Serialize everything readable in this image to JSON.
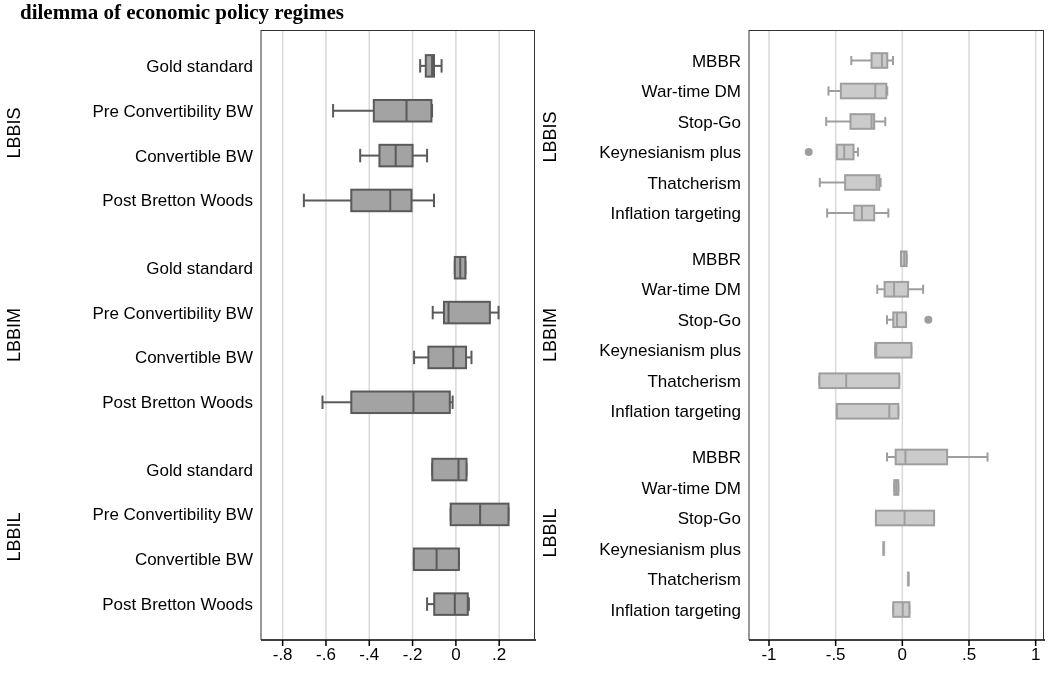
{
  "chart_data": [
    {
      "type": "box",
      "orientation": "horizontal",
      "title": "dilemma of economic policy regimes",
      "color": "#a3a3a3",
      "grid": "x",
      "categories": [
        "Gold standard",
        "Pre Convertibility BW",
        "Convertible BW",
        "Post Bretton Woods",
        null,
        "Gold standard",
        "Pre Convertibility BW",
        "Convertible BW",
        "Post Bretton Woods",
        null,
        "Gold standard",
        "Pre Convertibility BW",
        "Convertible BW",
        "Post Bretton Woods"
      ],
      "annotations": [
        "LBBIS",
        "LBBIM",
        "LBBIL"
      ],
      "xlim": [
        -0.9,
        0.37
      ],
      "xticks": [
        {
          "value": -0.8,
          "label": "-.8"
        },
        {
          "value": -0.6,
          "label": "-.6"
        },
        {
          "value": -0.4,
          "label": "-.4"
        },
        {
          "value": -0.2,
          "label": "-.2"
        },
        0,
        {
          "value": 0.2,
          "label": ".2"
        }
      ],
      "boxes": [
        {
          "low": -0.165,
          "q1": -0.139,
          "median": -0.11,
          "q3": -0.101,
          "high": -0.066
        },
        {
          "low": -0.567,
          "q1": -0.379,
          "median": -0.228,
          "q3": -0.113,
          "high": -0.11
        },
        {
          "low": -0.442,
          "q1": -0.353,
          "median": -0.278,
          "q3": -0.2,
          "high": -0.133
        },
        {
          "low": -0.702,
          "q1": -0.483,
          "median": -0.303,
          "q3": -0.205,
          "high": -0.101
        },
        null,
        {
          "low": -0.005,
          "q1": -0.005,
          "median": 0.02,
          "q3": 0.044,
          "high": 0.044
        },
        {
          "low": -0.107,
          "q1": -0.055,
          "median": -0.034,
          "q3": 0.157,
          "high": 0.197
        },
        {
          "low": -0.193,
          "q1": -0.127,
          "median": -0.012,
          "q3": 0.047,
          "high": 0.072
        },
        {
          "low": -0.616,
          "q1": -0.483,
          "median": -0.196,
          "q3": -0.028,
          "high": -0.015
        },
        null,
        {
          "low": -0.109,
          "q1": -0.109,
          "median": 0.012,
          "q3": 0.049,
          "high": 0.049
        },
        {
          "low": -0.024,
          "q1": -0.024,
          "median": 0.112,
          "q3": 0.243,
          "high": 0.243
        },
        {
          "low": -0.194,
          "q1": -0.194,
          "median": -0.089,
          "q3": 0.014,
          "high": 0.014
        },
        {
          "low": -0.133,
          "q1": -0.1,
          "median": -0.005,
          "q3": 0.055,
          "high": 0.06
        }
      ]
    },
    {
      "type": "box",
      "orientation": "horizontal",
      "color": "#cbcbcb",
      "grid": "x",
      "categories": [
        "MBBR",
        "War-time DM",
        "Stop-Go",
        "Keynesianism plus",
        "Thatcherism",
        "Inflation targeting",
        null,
        "MBBR",
        "War-time DM",
        "Stop-Go",
        "Keynesianism plus",
        "Thatcherism",
        "Inflation targeting",
        null,
        "MBBR",
        "War-time DM",
        "Stop-Go",
        "Keynesianism plus",
        "Thatcherism",
        "Inflation targeting"
      ],
      "annotations": [
        "LBBIS",
        "LBBIM",
        "LBBIL"
      ],
      "xlim": [
        -1.15,
        1.07
      ],
      "xticks": [
        -1,
        {
          "value": -0.5,
          "label": "-.5"
        },
        0,
        {
          "value": 0.5,
          "label": ".5"
        },
        1
      ],
      "boxes": [
        {
          "low": -0.383,
          "q1": -0.231,
          "median": -0.153,
          "q3": -0.113,
          "high": -0.07
        },
        {
          "low": -0.554,
          "q1": -0.461,
          "median": -0.203,
          "q3": -0.12,
          "high": -0.113
        },
        {
          "low": -0.571,
          "q1": -0.389,
          "median": -0.231,
          "q3": -0.211,
          "high": -0.128
        },
        {
          "low": -0.491,
          "q1": -0.491,
          "median": -0.436,
          "q3": -0.366,
          "high": -0.333,
          "outliers": [
            -0.702
          ]
        },
        {
          "low": -0.619,
          "q1": -0.429,
          "median": -0.193,
          "q3": -0.173,
          "high": -0.163
        },
        {
          "low": -0.564,
          "q1": -0.361,
          "median": -0.303,
          "q3": -0.211,
          "high": -0.105
        },
        null,
        {
          "low": -0.01,
          "q1": -0.01,
          "median": 0.015,
          "q3": 0.032,
          "high": 0.032
        },
        {
          "low": -0.188,
          "q1": -0.133,
          "median": -0.062,
          "q3": 0.043,
          "high": 0.156
        },
        {
          "low": -0.115,
          "q1": -0.068,
          "median": -0.04,
          "q3": 0.028,
          "high": 0.028,
          "outliers": [
            0.195
          ]
        },
        {
          "low": -0.203,
          "q1": -0.203,
          "median": -0.195,
          "q3": 0.068,
          "high": 0.068
        },
        {
          "low": -0.622,
          "q1": -0.622,
          "median": -0.421,
          "q3": -0.023,
          "high": -0.023
        },
        {
          "low": -0.491,
          "q1": -0.491,
          "median": -0.098,
          "q3": -0.03,
          "high": -0.03
        },
        null,
        {
          "low": -0.115,
          "q1": -0.05,
          "median": 0.023,
          "q3": 0.336,
          "high": 0.639
        },
        {
          "low": -0.06,
          "q1": -0.06,
          "median": -0.045,
          "q3": -0.03,
          "high": -0.03
        },
        {
          "low": -0.198,
          "q1": -0.198,
          "median": 0.017,
          "q3": 0.238,
          "high": 0.238
        },
        {
          "low": -0.14,
          "q1": -0.14,
          "median": -0.14,
          "q3": -0.14,
          "high": -0.14
        },
        {
          "low": 0.045,
          "q1": 0.045,
          "median": 0.045,
          "q3": 0.045,
          "high": 0.045
        },
        {
          "low": -0.068,
          "q1": -0.068,
          "median": 0.003,
          "q3": 0.053,
          "high": 0.053
        }
      ]
    }
  ]
}
